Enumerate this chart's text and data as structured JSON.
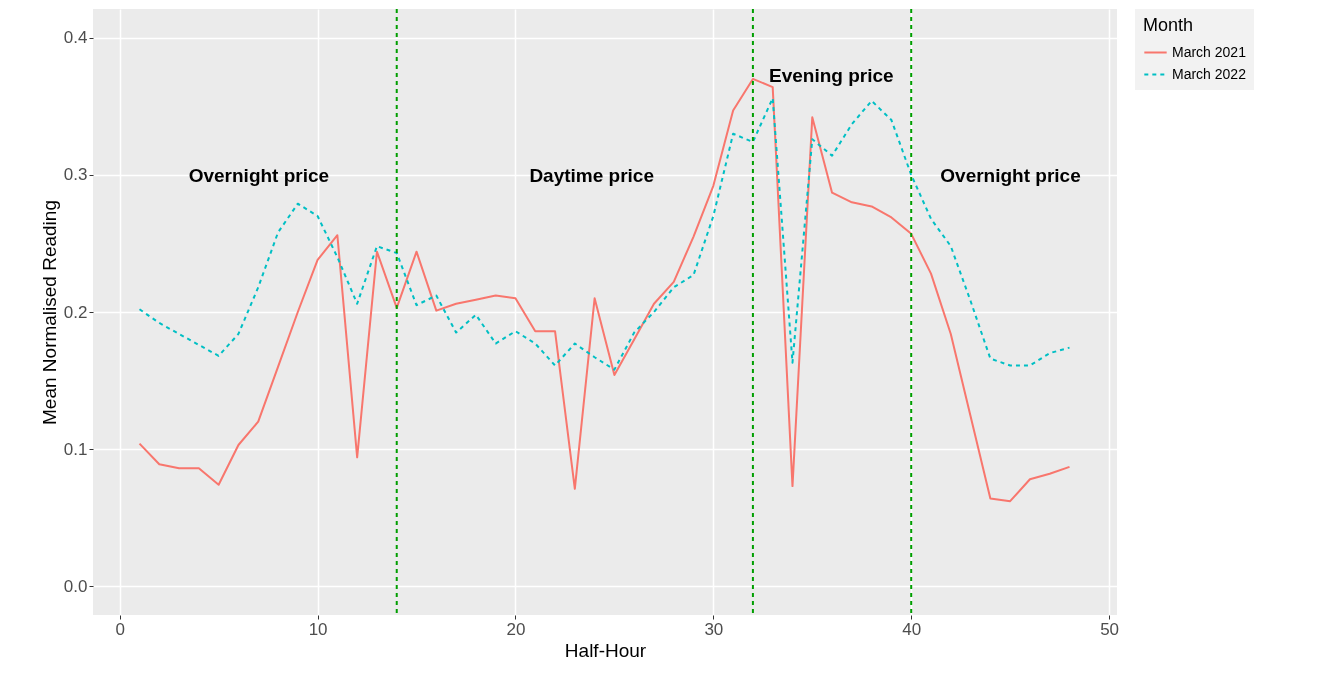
{
  "chart_data": {
    "type": "line",
    "xlabel": "Half-Hour",
    "ylabel": "Mean Normalised Reading",
    "legend_title": "Month",
    "x": [
      1,
      2,
      3,
      4,
      5,
      6,
      7,
      8,
      9,
      10,
      11,
      12,
      13,
      14,
      15,
      16,
      17,
      18,
      19,
      20,
      21,
      22,
      23,
      24,
      25,
      26,
      27,
      28,
      29,
      30,
      31,
      32,
      33,
      34,
      35,
      36,
      37,
      38,
      39,
      40,
      41,
      42,
      43,
      44,
      45,
      46,
      47,
      48
    ],
    "series": [
      {
        "name": "March 2021",
        "color": "#f8766d",
        "line_style": "solid",
        "values": [
          0.104,
          0.089,
          0.086,
          0.086,
          0.074,
          0.103,
          0.12,
          0.16,
          0.2,
          0.238,
          0.256,
          0.094,
          0.244,
          0.203,
          0.244,
          0.201,
          0.206,
          0.209,
          0.212,
          0.21,
          0.186,
          0.186,
          0.071,
          0.21,
          0.154,
          0.18,
          0.206,
          0.222,
          0.255,
          0.292,
          0.347,
          0.37,
          0.364,
          0.073,
          0.342,
          0.287,
          0.28,
          0.277,
          0.269,
          0.257,
          0.228,
          0.184,
          0.124,
          0.064,
          0.062,
          0.078,
          0.082,
          0.087
        ]
      },
      {
        "name": "March 2022",
        "color": "#00bfc4",
        "line_style": "dashed",
        "values": [
          0.202,
          0.192,
          0.184,
          0.176,
          0.168,
          0.184,
          0.218,
          0.258,
          0.279,
          0.27,
          0.24,
          0.206,
          0.248,
          0.243,
          0.205,
          0.212,
          0.185,
          0.198,
          0.177,
          0.186,
          0.177,
          0.161,
          0.177,
          0.167,
          0.158,
          0.185,
          0.2,
          0.218,
          0.227,
          0.27,
          0.33,
          0.324,
          0.356,
          0.163,
          0.326,
          0.314,
          0.337,
          0.354,
          0.34,
          0.3,
          0.268,
          0.248,
          0.208,
          0.166,
          0.161,
          0.161,
          0.17,
          0.174
        ]
      }
    ],
    "xlim": [
      -1.35,
      50.4
    ],
    "xticks": [
      0,
      10,
      20,
      30,
      40,
      50
    ],
    "ylim": [
      -0.021,
      0.421
    ],
    "yticks": [
      {
        "value": 0,
        "label": "0.0"
      },
      0.1,
      0.2,
      0.3,
      0.4
    ],
    "grid": true,
    "legend": "right",
    "ref_lines": [
      {
        "axis": "x",
        "value": 14,
        "color": "#009e00",
        "line_style": "dashed"
      },
      {
        "axis": "x",
        "value": 32,
        "color": "#009e00",
        "line_style": "dashed"
      },
      {
        "axis": "x",
        "value": 40,
        "color": "#009e00",
        "line_style": "dashed"
      }
    ],
    "annotations": [
      "Overnight price",
      "Daytime price",
      "Evening price",
      "Overnight price"
    ]
  }
}
